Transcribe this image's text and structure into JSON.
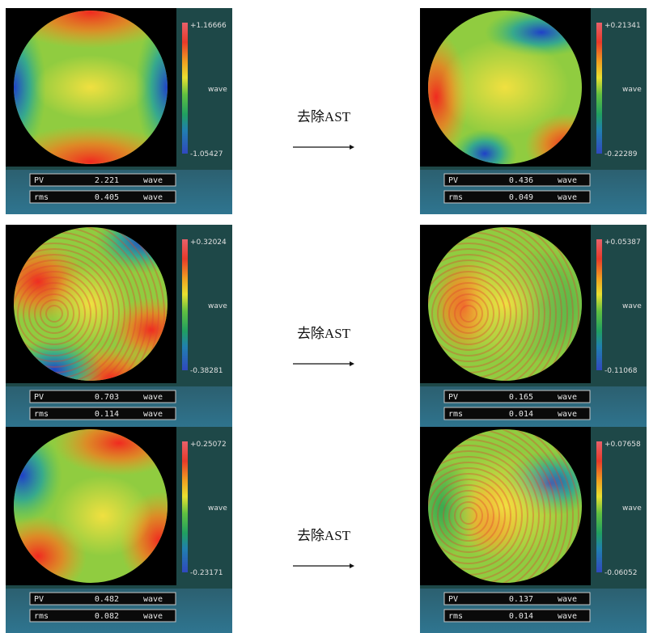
{
  "labels": {
    "pv": "PV",
    "rms": "rms",
    "unit": "wave"
  },
  "rows": [
    {
      "left": {
        "max": "+1.16666",
        "min": "-1.05427",
        "pv": "2.221",
        "rms": "0.405"
      },
      "action": "去除AST",
      "right": {
        "max": "+0.21341",
        "min": "-0.22289",
        "pv": "0.436",
        "rms": "0.049"
      }
    },
    {
      "left": {
        "max": "+0.32024",
        "min": "-0.38281",
        "pv": "0.703",
        "rms": "0.114"
      },
      "action": "去除AST",
      "right": {
        "max": "+0.05387",
        "min": "-0.11068",
        "pv": "0.165",
        "rms": "0.014"
      }
    },
    {
      "left": {
        "max": "+0.25072",
        "min": "-0.23171",
        "pv": "0.482",
        "rms": "0.082"
      },
      "action": "去除AST",
      "right": {
        "max": "+0.07658",
        "min": "-0.06052",
        "pv": "0.137",
        "rms": "0.014"
      }
    }
  ]
}
